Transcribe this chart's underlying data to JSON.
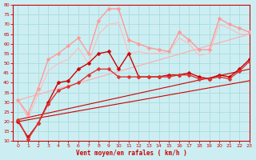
{
  "title": "",
  "xlabel": "Vent moyen/en rafales ( km/h )",
  "ylabel": "",
  "xlim": [
    -0.5,
    23
  ],
  "ylim": [
    10,
    80
  ],
  "yticks": [
    10,
    15,
    20,
    25,
    30,
    35,
    40,
    45,
    50,
    55,
    60,
    65,
    70,
    75,
    80
  ],
  "xticks": [
    0,
    1,
    2,
    3,
    4,
    5,
    6,
    7,
    8,
    9,
    10,
    11,
    12,
    13,
    14,
    15,
    16,
    17,
    18,
    19,
    20,
    21,
    22,
    23
  ],
  "bg_color": "#cceef2",
  "grid_color": "#aadddd",
  "series": [
    {
      "label": "pink_gusts_1",
      "x": [
        0,
        1,
        2,
        3,
        4,
        5,
        6,
        7,
        8,
        9,
        10,
        11,
        12,
        13,
        14,
        15,
        16,
        17,
        18,
        19,
        20,
        21,
        22,
        23
      ],
      "y": [
        31,
        24,
        37,
        52,
        55,
        59,
        63,
        55,
        72,
        78,
        78,
        62,
        60,
        58,
        57,
        56,
        66,
        62,
        57,
        57,
        73,
        70,
        68,
        66
      ],
      "color": "#ff9999",
      "lw": 1.0,
      "marker": "D",
      "ms": 2.5
    },
    {
      "label": "pink_gusts_2",
      "x": [
        0,
        1,
        2,
        3,
        4,
        5,
        6,
        7,
        8,
        9,
        10,
        11,
        12,
        13,
        14,
        15,
        16,
        17,
        18,
        19,
        20,
        21,
        22,
        23
      ],
      "y": [
        31,
        22,
        34,
        46,
        50,
        52,
        58,
        50,
        65,
        70,
        71,
        55,
        56,
        55,
        55,
        56,
        63,
        60,
        54,
        55,
        70,
        68,
        65,
        65
      ],
      "color": "#ffbbbb",
      "lw": 0.8,
      "marker": null,
      "ms": 0
    },
    {
      "label": "dark_red_marked_1",
      "x": [
        0,
        1,
        2,
        3,
        4,
        5,
        6,
        7,
        8,
        9,
        10,
        11,
        12,
        13,
        14,
        15,
        16,
        17,
        18,
        19,
        20,
        21,
        22,
        23
      ],
      "y": [
        20,
        12,
        19,
        30,
        40,
        41,
        47,
        50,
        55,
        56,
        47,
        55,
        43,
        43,
        43,
        44,
        44,
        45,
        43,
        42,
        44,
        43,
        47,
        52
      ],
      "color": "#cc0000",
      "lw": 1.0,
      "marker": "D",
      "ms": 2.5
    },
    {
      "label": "dark_red_marked_2",
      "x": [
        0,
        1,
        2,
        3,
        4,
        5,
        6,
        7,
        8,
        9,
        10,
        11,
        12,
        13,
        14,
        15,
        16,
        17,
        18,
        19,
        20,
        21,
        22,
        23
      ],
      "y": [
        21,
        11,
        19,
        29,
        36,
        38,
        40,
        44,
        47,
        47,
        43,
        43,
        43,
        43,
        43,
        43,
        44,
        44,
        42,
        42,
        43,
        42,
        46,
        51
      ],
      "color": "#dd3333",
      "lw": 1.0,
      "marker": "D",
      "ms": 2.5
    },
    {
      "label": "straight_line_1",
      "x": [
        0,
        23
      ],
      "y": [
        21,
        47
      ],
      "color": "#cc0000",
      "lw": 0.8,
      "marker": null,
      "ms": 0
    },
    {
      "label": "straight_line_2",
      "x": [
        0,
        23
      ],
      "y": [
        20,
        41
      ],
      "color": "#cc0000",
      "lw": 0.8,
      "marker": null,
      "ms": 0
    },
    {
      "label": "straight_line_pink",
      "x": [
        0,
        23
      ],
      "y": [
        31,
        65
      ],
      "color": "#ffaaaa",
      "lw": 0.8,
      "marker": null,
      "ms": 0
    }
  ]
}
